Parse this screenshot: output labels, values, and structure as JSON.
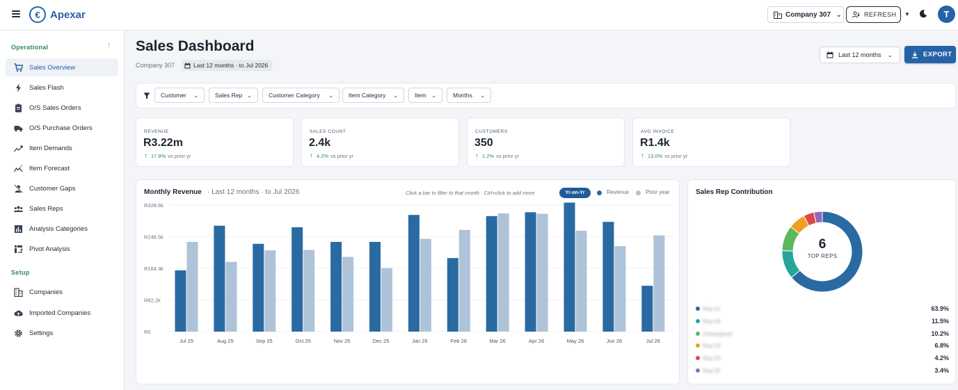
{
  "app": {
    "brand": "Apexar",
    "logo_letter": "€"
  },
  "topbar": {
    "company_label": "Company 307",
    "refresh_label": "REFRESH",
    "avatar_letter": "T"
  },
  "sidebar": {
    "sections": [
      {
        "label": "Operational"
      },
      {
        "label": "Setup"
      }
    ],
    "items": [
      {
        "label": "Sales Overview",
        "icon": "cart-icon",
        "active": true
      },
      {
        "label": "Sales Flash",
        "icon": "lightning-icon"
      },
      {
        "label": "O/S Sales Orders",
        "icon": "clipboard-icon"
      },
      {
        "label": "O/S Purchase Orders",
        "icon": "truck-icon"
      },
      {
        "label": "Item Demands",
        "icon": "trend-icon"
      },
      {
        "label": "Item Forecast",
        "icon": "forecast-icon"
      },
      {
        "label": "Customer Gaps",
        "icon": "person-off-icon"
      },
      {
        "label": "Sales Reps",
        "icon": "people-icon"
      },
      {
        "label": "Analysis Categories",
        "icon": "bar-chart-icon"
      },
      {
        "label": "Pivot Analysis",
        "icon": "pivot-icon"
      },
      {
        "label": "Companies",
        "icon": "building-icon"
      },
      {
        "label": "Imported Companies",
        "icon": "cloud-upload-icon"
      },
      {
        "label": "Settings",
        "icon": "gear-icon"
      }
    ]
  },
  "header": {
    "title": "Sales Dashboard",
    "company": "Company 307",
    "range_chip": "Last 12 months · to Jul 2026",
    "period_label": "Last 12 months",
    "export_label": "EXPORT"
  },
  "filters": [
    "Customer",
    "Sales Rep",
    "Customer Category",
    "Item Category",
    "Item",
    "Months"
  ],
  "kpis": [
    {
      "label": "REVENUE",
      "value": "R3.22m",
      "delta": "17.8%",
      "suffix": "vs prior yr"
    },
    {
      "label": "SALES COUNT",
      "value": "2.4k",
      "delta": "4.2%",
      "suffix": "vs prior yr"
    },
    {
      "label": "CUSTOMERS",
      "value": "350",
      "delta": "1.2%",
      "suffix": "vs prior yr"
    },
    {
      "label": "AVG INVOICE",
      "value": "R1.4k",
      "delta": "13.0%",
      "suffix": "vs prior yr"
    }
  ],
  "revenue_card": {
    "title": "Monthly Revenue",
    "subtitle": "· Last 12 months · to Jul 2026",
    "hint": "Click a bar to filter to that month · Ctrl+click to add more",
    "yoy_label": "Yr-on-Yr",
    "legend_revenue": "Revenue",
    "legend_prior": "Prior year"
  },
  "chart_data": {
    "type": "bar",
    "categories": [
      "Jul 25",
      "Aug 25",
      "Sep 25",
      "Oct 25",
      "Nov 25",
      "Dec 25",
      "Jan 26",
      "Feb 26",
      "Mar 26",
      "Apr 26",
      "May 26",
      "Jun 26",
      "Jul 26"
    ],
    "series": [
      {
        "name": "Revenue",
        "color": "#2a6aa3",
        "values": [
          159000,
          275000,
          228000,
          271000,
          233000,
          233000,
          303000,
          191000,
          300000,
          310000,
          335000,
          285000,
          119000
        ]
      },
      {
        "name": "Prior year",
        "color": "#aec3d8",
        "values": [
          233000,
          181000,
          211000,
          212000,
          194000,
          165000,
          241000,
          264000,
          307000,
          306000,
          262000,
          222000,
          250000
        ]
      }
    ],
    "y_ticks": [
      "R0",
      "R82.2k",
      "R164.3k",
      "R246.5k",
      "R328.6k"
    ],
    "ylim": [
      0,
      328600
    ],
    "grid": true
  },
  "rep_card": {
    "title": "Sales Rep Contribution",
    "center_value": "6",
    "center_label": "TOP REPS",
    "reps": [
      {
        "name": "Rep 01",
        "pct": "63.9%",
        "value": 63.9,
        "color": "#2a6aa3"
      },
      {
        "name": "Rep 04",
        "pct": "11.5%",
        "value": 11.5,
        "color": "#26a69a"
      },
      {
        "name": "Unassigned",
        "pct": "10.2%",
        "value": 10.2,
        "color": "#5cb85c"
      },
      {
        "name": "Rep 02",
        "pct": "6.8%",
        "value": 6.8,
        "color": "#f0a020"
      },
      {
        "name": "Rep 03",
        "pct": "4.2%",
        "value": 4.2,
        "color": "#e04848"
      },
      {
        "name": "Rep 05",
        "pct": "3.4%",
        "value": 3.4,
        "color": "#9467bd"
      }
    ]
  }
}
